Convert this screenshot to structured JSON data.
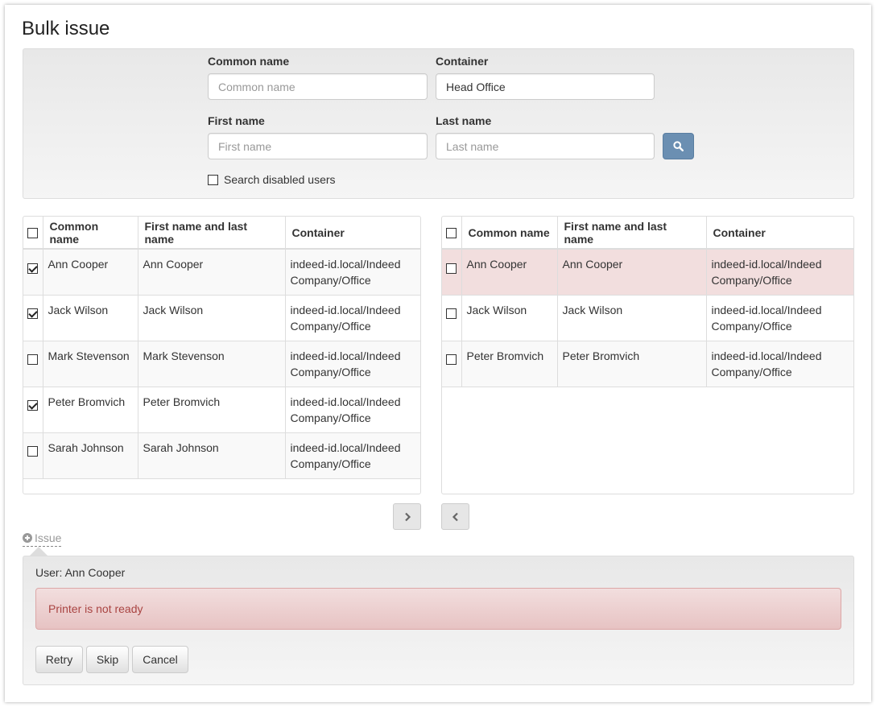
{
  "title": "Bulk issue",
  "filter": {
    "common_name": {
      "label": "Common name",
      "placeholder": "Common name",
      "value": ""
    },
    "container": {
      "label": "Container",
      "value": "Head Office"
    },
    "first_name": {
      "label": "First name",
      "placeholder": "First name",
      "value": ""
    },
    "last_name": {
      "label": "Last name",
      "placeholder": "Last name",
      "value": ""
    },
    "search_icon": "search-icon",
    "search_disabled_label": "Search disabled users",
    "search_disabled_checked": false
  },
  "columns": [
    "Common name",
    "First name and last name",
    "Container"
  ],
  "left_table": {
    "rows": [
      {
        "checked": true,
        "common": "Ann Cooper",
        "full": "Ann Cooper",
        "container": "indeed-id.local/Indeed Company/Office"
      },
      {
        "checked": true,
        "common": "Jack Wilson",
        "full": "Jack Wilson",
        "container": "indeed-id.local/Indeed Company/Office"
      },
      {
        "checked": false,
        "common": "Mark Stevenson",
        "full": "Mark Stevenson",
        "container": "indeed-id.local/Indeed Company/Office"
      },
      {
        "checked": true,
        "common": "Peter Bromvich",
        "full": "Peter Bromvich",
        "container": "indeed-id.local/Indeed Company/Office"
      },
      {
        "checked": false,
        "common": "Sarah Johnson",
        "full": "Sarah Johnson",
        "container": "indeed-id.local/Indeed Company/Office"
      }
    ]
  },
  "right_table": {
    "rows": [
      {
        "checked": false,
        "error": true,
        "common": "Ann Cooper",
        "full": "Ann Cooper",
        "container": "indeed-id.local/Indeed Company/Office"
      },
      {
        "checked": false,
        "common": "Jack Wilson",
        "full": "Jack Wilson",
        "container": "indeed-id.local/Indeed Company/Office"
      },
      {
        "checked": false,
        "common": "Peter Bromvich",
        "full": "Peter Bromvich",
        "container": "indeed-id.local/Indeed Company/Office"
      }
    ]
  },
  "issue": {
    "toggle_label": "Issue",
    "user_text": "User: Ann Cooper",
    "error": "Printer is not ready",
    "buttons": {
      "retry": "Retry",
      "skip": "Skip",
      "cancel": "Cancel"
    }
  },
  "colors": {
    "search_button": "#6b8fb2",
    "error_row": "#f2dede",
    "error_text": "#a94442"
  }
}
